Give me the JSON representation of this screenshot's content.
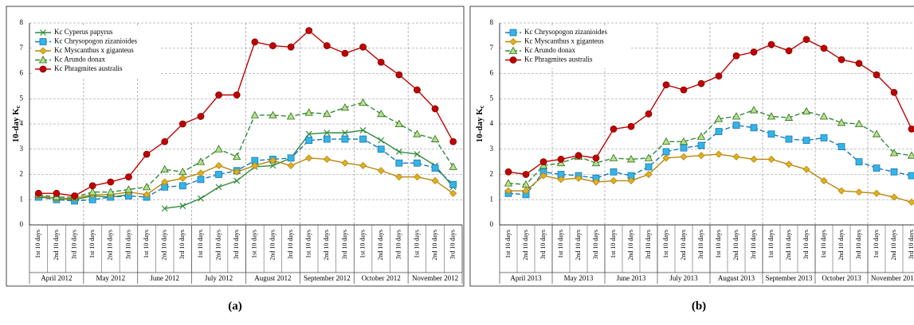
{
  "chart_data": [
    {
      "type": "line",
      "panel_label": "(a)",
      "ylabel": "10-day K",
      "ylabel_sub": "c",
      "ylim": [
        0,
        8
      ],
      "yticks": [
        0,
        1,
        2,
        3,
        4,
        5,
        6,
        7,
        8
      ],
      "grid": true,
      "legend": "upper left",
      "categories": [
        "1st 10 days",
        "2nd 10 days",
        "3rd 10 days",
        "1st 10 days",
        "2nd 10 days",
        "3rd 10 days",
        "1st 10 days",
        "2nd 10 days",
        "3rd 10 days",
        "1st 10 days",
        "2nd 10 days",
        "3rd 10 days",
        "1st 10 days",
        "2nd 10 days",
        "3rd 10 days",
        "1st 10 days",
        "2nd 10 days",
        "3rd 10 days",
        "1st 10 days",
        "2nd 10 days",
        "3rd 10 days",
        "1st 10 days",
        "2nd 10 days",
        "3rd 10 days"
      ],
      "month_groups": [
        "April 2012",
        "May 2012",
        "June 2012",
        "July 2012",
        "August 2012",
        "September 2012",
        "October 2012",
        "November 2012"
      ],
      "series": [
        {
          "name": "Kc Cyperus papyrus",
          "color": "#2e8b3a",
          "fill": "#2e8b3a",
          "marker": "x",
          "line_style": "solid",
          "values": [
            1.1,
            1.05,
            1.0,
            1.15,
            1.1,
            1.2,
            null,
            0.65,
            0.75,
            1.05,
            1.5,
            1.75,
            2.3,
            2.35,
            2.65,
            3.6,
            3.65,
            3.65,
            3.75,
            3.35,
            2.9,
            2.8,
            2.35,
            1.5
          ]
        },
        {
          "name": "Kc Chrysopogon zizanioides",
          "color": "#1b75bb",
          "fill": "#33b5e5",
          "marker": "square",
          "line_style": "dashed",
          "values": [
            1.1,
            1.0,
            0.95,
            1.0,
            1.1,
            1.15,
            1.1,
            1.5,
            1.55,
            1.8,
            2.0,
            2.15,
            2.55,
            2.6,
            2.65,
            3.35,
            3.4,
            3.4,
            3.4,
            3.0,
            2.45,
            2.45,
            2.25,
            1.6
          ]
        },
        {
          "name": "Kc Myscanthus x giganteus",
          "color": "#b8860b",
          "fill": "#e0b020",
          "marker": "diamond",
          "line_style": "solid",
          "values": [
            1.15,
            1.05,
            1.05,
            1.2,
            1.2,
            1.3,
            1.2,
            1.7,
            1.85,
            2.05,
            2.35,
            2.1,
            2.35,
            2.55,
            2.35,
            2.65,
            2.6,
            2.45,
            2.35,
            2.15,
            1.9,
            1.9,
            1.75,
            1.25
          ]
        },
        {
          "name": "Kc Arundo donax",
          "color": "#2e8b3a",
          "fill": "#b5e08a",
          "marker": "triangle",
          "line_style": "dashed",
          "values": [
            1.2,
            1.1,
            1.1,
            1.3,
            1.3,
            1.4,
            1.5,
            2.2,
            2.1,
            2.5,
            3.0,
            2.7,
            4.35,
            4.35,
            4.3,
            4.45,
            4.4,
            4.65,
            4.85,
            4.4,
            4.0,
            3.6,
            3.4,
            2.3
          ]
        },
        {
          "name": "Kc Phragmites australis",
          "color": "#c00000",
          "fill": "#c00000",
          "marker": "circle",
          "line_style": "solid",
          "values": [
            1.25,
            1.25,
            1.15,
            1.55,
            1.7,
            1.9,
            2.8,
            3.3,
            4.0,
            4.3,
            5.15,
            5.15,
            7.25,
            7.1,
            7.05,
            7.7,
            7.1,
            6.8,
            7.05,
            6.45,
            5.95,
            5.35,
            4.6,
            3.3
          ]
        }
      ]
    },
    {
      "type": "line",
      "panel_label": "(b)",
      "ylabel": "10-day K",
      "ylabel_sub": "c",
      "ylim": [
        0,
        8
      ],
      "yticks": [
        0,
        1,
        2,
        3,
        4,
        5,
        6,
        7,
        8
      ],
      "grid": true,
      "legend": "upper left",
      "categories": [
        "1st 10 days",
        "2nd 10 days",
        "3rd 10 days",
        "1st 10 days",
        "2nd 10 days",
        "3rd 10 days",
        "1st 10 days",
        "2nd 10 days",
        "3rd 10 days",
        "1st 10 days",
        "2nd 10 days",
        "3rd 10 days",
        "1st 10 days",
        "2nd 10 days",
        "3rd 10 days",
        "1st 10 days",
        "2nd 10 days",
        "3rd 10 days",
        "1st 10 days",
        "2nd 10 days",
        "3rd 10 days",
        "1st 10 days",
        "2nd 10 days",
        "3rd 10 days"
      ],
      "month_groups": [
        "April 2013",
        "May 2013",
        "June 2013",
        "July 2013",
        "August 2013",
        "September 2013",
        "October 2013",
        "November 2013"
      ],
      "series": [
        {
          "name": "Kc Chrysopogon zizanioides",
          "color": "#1b75bb",
          "fill": "#33b5e5",
          "marker": "square",
          "line_style": "dashed",
          "values": [
            1.25,
            1.2,
            2.1,
            2.0,
            1.95,
            1.85,
            2.1,
            1.95,
            2.3,
            2.9,
            3.05,
            3.15,
            3.7,
            3.95,
            3.85,
            3.6,
            3.4,
            3.35,
            3.45,
            3.1,
            2.5,
            2.25,
            2.1,
            1.95
          ]
        },
        {
          "name": "Kc Myscanthus x giganteus",
          "color": "#b8860b",
          "fill": "#e0b020",
          "marker": "diamond",
          "line_style": "solid",
          "values": [
            1.35,
            1.35,
            1.95,
            1.8,
            1.85,
            1.7,
            1.75,
            1.75,
            2.0,
            2.65,
            2.7,
            2.75,
            2.8,
            2.7,
            2.6,
            2.6,
            2.4,
            2.2,
            1.75,
            1.35,
            1.3,
            1.25,
            1.1,
            0.9
          ]
        },
        {
          "name": "Kc Arundo donax",
          "color": "#2e8b3a",
          "fill": "#b5e08a",
          "marker": "triangle",
          "line_style": "dashed",
          "values": [
            1.65,
            1.6,
            2.35,
            2.45,
            2.7,
            2.45,
            2.65,
            2.6,
            2.65,
            3.3,
            3.3,
            3.5,
            4.2,
            4.3,
            4.55,
            4.3,
            4.25,
            4.5,
            4.3,
            4.05,
            4.0,
            3.6,
            2.85,
            2.75
          ]
        },
        {
          "name": "Kc Phragmites australis",
          "color": "#c00000",
          "fill": "#c00000",
          "marker": "circle",
          "line_style": "solid",
          "values": [
            2.1,
            2.0,
            2.5,
            2.6,
            2.75,
            2.65,
            3.8,
            3.9,
            4.4,
            5.55,
            5.35,
            5.6,
            5.9,
            6.7,
            6.85,
            7.15,
            6.9,
            7.35,
            7.0,
            6.55,
            6.4,
            5.95,
            5.25,
            3.8
          ]
        }
      ]
    }
  ]
}
